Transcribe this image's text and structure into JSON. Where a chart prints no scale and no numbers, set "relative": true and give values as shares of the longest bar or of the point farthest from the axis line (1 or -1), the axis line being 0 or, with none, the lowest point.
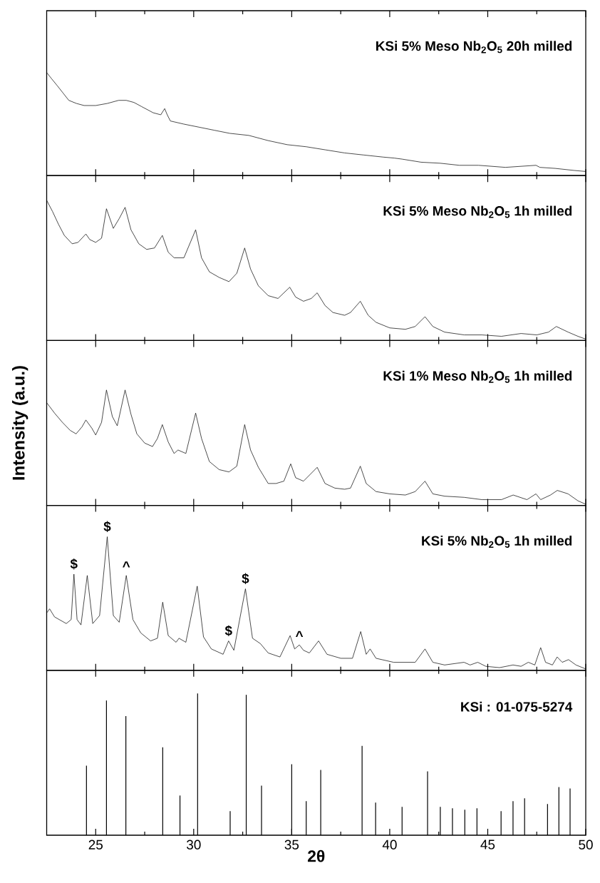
{
  "chart_data": [
    {
      "type": "line",
      "relative": true,
      "title": "KSi 5% Meso Nb$_{2}$O$_{5}$ 20h milled",
      "xlim": [
        22.5,
        50
      ],
      "xticks": [
        25,
        {
          "value": 27.5,
          "label": null
        },
        30,
        {
          "value": 32.5,
          "label": null
        },
        35,
        {
          "value": 37.5,
          "label": null
        },
        40,
        {
          "value": 42.5,
          "label": null
        },
        45,
        {
          "value": 47.5,
          "label": null
        },
        50
      ],
      "tick_labels": false,
      "series": [
        {
          "color": "#000000",
          "x": [
            22.5,
            22.75,
            23.05,
            23.34,
            23.63,
            24.02,
            24.41,
            25.0,
            25.59,
            26.17,
            26.56,
            26.95,
            27.34,
            27.93,
            28.32,
            28.52,
            28.65,
            28.81,
            29.49,
            30.27,
            31.05,
            31.84,
            32.81,
            33.79,
            34.77,
            35.74,
            36.72,
            37.7,
            38.67,
            39.65,
            40.23,
            40.63,
            41.6,
            42.58,
            43.55,
            44.53,
            45.9,
            47.46,
            47.66,
            48.44,
            49.41,
            50.0
          ],
          "values": [
            1.0,
            0.94,
            0.87,
            0.8,
            0.73,
            0.7,
            0.68,
            0.68,
            0.7,
            0.73,
            0.73,
            0.71,
            0.67,
            0.61,
            0.59,
            0.65,
            0.59,
            0.53,
            0.5,
            0.47,
            0.44,
            0.41,
            0.39,
            0.34,
            0.3,
            0.28,
            0.25,
            0.22,
            0.2,
            0.18,
            0.17,
            0.16,
            0.13,
            0.12,
            0.1,
            0.1,
            0.08,
            0.1,
            0.08,
            0.07,
            0.05,
            0.04
          ]
        }
      ]
    },
    {
      "type": "line",
      "relative": true,
      "title": "KSi 5% Meso Nb$_{2}$O$_{5}$ 1h milled",
      "xlim": [
        22.5,
        50
      ],
      "xticks": [
        25,
        {
          "value": 27.5,
          "label": null
        },
        30,
        {
          "value": 32.5,
          "label": null
        },
        35,
        {
          "value": 37.5,
          "label": null
        },
        40,
        {
          "value": 42.5,
          "label": null
        },
        45,
        {
          "value": 47.5,
          "label": null
        },
        50
      ],
      "tick_labels": false,
      "series": [
        {
          "color": "#000000",
          "x": [
            22.5,
            22.8,
            23.1,
            23.4,
            23.8,
            24.1,
            24.5,
            24.7,
            25.0,
            25.3,
            25.55,
            25.9,
            26.2,
            26.5,
            26.8,
            27.2,
            27.6,
            28.0,
            28.4,
            28.7,
            29.0,
            29.5,
            30.1,
            30.4,
            30.8,
            31.3,
            31.8,
            32.2,
            32.6,
            32.9,
            33.3,
            33.8,
            34.3,
            34.9,
            35.2,
            35.6,
            36.0,
            36.3,
            36.7,
            37.1,
            37.7,
            38.0,
            38.5,
            38.9,
            39.3,
            40.0,
            40.8,
            41.3,
            41.8,
            42.2,
            42.8,
            43.8,
            44.7,
            45.7,
            46.7,
            47.5,
            48.1,
            48.5,
            49.1,
            49.6,
            50.0
          ],
          "values": [
            1.0,
            0.92,
            0.83,
            0.75,
            0.69,
            0.7,
            0.76,
            0.72,
            0.7,
            0.73,
            0.94,
            0.8,
            0.87,
            0.95,
            0.79,
            0.69,
            0.65,
            0.66,
            0.75,
            0.63,
            0.59,
            0.59,
            0.79,
            0.59,
            0.49,
            0.45,
            0.42,
            0.48,
            0.66,
            0.51,
            0.39,
            0.32,
            0.3,
            0.38,
            0.31,
            0.28,
            0.3,
            0.34,
            0.25,
            0.2,
            0.18,
            0.2,
            0.28,
            0.18,
            0.13,
            0.09,
            0.08,
            0.1,
            0.17,
            0.1,
            0.06,
            0.04,
            0.04,
            0.03,
            0.05,
            0.04,
            0.06,
            0.1,
            0.06,
            0.03,
            0.01
          ]
        }
      ]
    },
    {
      "type": "line",
      "relative": true,
      "title": "KSi 1% Meso Nb$_{2}$O$_{5}$ 1h milled",
      "ylabel": "Intensity (a.u.)",
      "xlim": [
        22.5,
        50
      ],
      "xticks": [
        25,
        {
          "value": 27.5,
          "label": null
        },
        30,
        {
          "value": 32.5,
          "label": null
        },
        35,
        {
          "value": 37.5,
          "label": null
        },
        40,
        {
          "value": 42.5,
          "label": null
        },
        45,
        {
          "value": 47.5,
          "label": null
        },
        50
      ],
      "tick_labels": false,
      "series": [
        {
          "color": "#000000",
          "x": [
            22.5,
            22.9,
            23.3,
            23.7,
            24.0,
            24.3,
            24.5,
            24.8,
            25.0,
            25.3,
            25.55,
            25.85,
            26.1,
            26.5,
            26.8,
            27.1,
            27.5,
            27.9,
            28.15,
            28.4,
            28.7,
            29.0,
            29.2,
            29.6,
            30.1,
            30.4,
            30.8,
            31.3,
            31.8,
            32.2,
            32.6,
            32.9,
            33.3,
            33.8,
            34.2,
            34.6,
            34.95,
            35.2,
            35.6,
            36.3,
            36.7,
            37.2,
            37.7,
            38.0,
            38.5,
            38.8,
            39.3,
            40.0,
            40.8,
            41.3,
            41.8,
            42.2,
            42.8,
            43.8,
            44.7,
            45.7,
            46.3,
            47.0,
            47.46,
            47.7,
            48.2,
            48.55,
            49.1,
            49.6,
            50.0
          ],
          "values": [
            0.89,
            0.8,
            0.72,
            0.65,
            0.62,
            0.68,
            0.74,
            0.67,
            0.61,
            0.72,
            1.0,
            0.77,
            0.69,
            1.0,
            0.79,
            0.62,
            0.54,
            0.51,
            0.58,
            0.7,
            0.55,
            0.45,
            0.48,
            0.45,
            0.8,
            0.58,
            0.38,
            0.31,
            0.29,
            0.34,
            0.7,
            0.48,
            0.33,
            0.19,
            0.19,
            0.21,
            0.36,
            0.24,
            0.21,
            0.33,
            0.19,
            0.15,
            0.14,
            0.15,
            0.34,
            0.19,
            0.12,
            0.1,
            0.09,
            0.12,
            0.21,
            0.1,
            0.08,
            0.07,
            0.05,
            0.05,
            0.09,
            0.05,
            0.1,
            0.05,
            0.09,
            0.13,
            0.1,
            0.04,
            0.01
          ]
        }
      ]
    },
    {
      "type": "line",
      "relative": true,
      "title": "KSi 5% Nb$_{2}$O$_{5}$ 1h milled",
      "xlim": [
        22.5,
        50
      ],
      "xticks": [
        25,
        {
          "value": 27.5,
          "label": null
        },
        30,
        {
          "value": 32.5,
          "label": null
        },
        35,
        {
          "value": 37.5,
          "label": null
        },
        40,
        {
          "value": 42.5,
          "label": null
        },
        45,
        {
          "value": 47.5,
          "label": null
        },
        50
      ],
      "tick_labels": false,
      "annotations": [
        {
          "text": "$",
          "x": 23.89,
          "y": 0.72
        },
        {
          "text": "$",
          "x": 25.59,
          "y": 1.0
        },
        {
          "text": "^",
          "x": 26.56,
          "y": 0.71
        },
        {
          "text": "$",
          "x": 31.78,
          "y": 0.22
        },
        {
          "text": "$",
          "x": 32.64,
          "y": 0.61
        },
        {
          "text": "^",
          "x": 35.39,
          "y": 0.19
        }
      ],
      "series": [
        {
          "color": "#000000",
          "x": [
            22.5,
            22.65,
            22.9,
            23.5,
            23.75,
            23.89,
            24.05,
            24.25,
            24.57,
            24.85,
            25.2,
            25.59,
            25.9,
            26.2,
            26.56,
            26.9,
            27.3,
            27.8,
            28.15,
            28.42,
            28.7,
            29.1,
            29.25,
            29.6,
            30.18,
            30.5,
            30.9,
            31.5,
            31.78,
            32.05,
            32.64,
            33.0,
            33.4,
            33.8,
            34.4,
            34.92,
            35.15,
            35.39,
            35.6,
            35.9,
            36.37,
            36.8,
            37.5,
            38.1,
            38.52,
            38.8,
            39.0,
            39.3,
            40.2,
            41.3,
            41.8,
            42.2,
            42.8,
            43.79,
            44.1,
            44.49,
            44.9,
            45.6,
            46.29,
            46.7,
            47.07,
            47.4,
            47.7,
            47.95,
            48.3,
            48.54,
            48.8,
            49.12,
            49.5,
            50.0
          ],
          "values": [
            0.43,
            0.46,
            0.4,
            0.35,
            0.38,
            0.72,
            0.38,
            0.34,
            0.71,
            0.35,
            0.41,
            1.0,
            0.41,
            0.36,
            0.71,
            0.38,
            0.28,
            0.22,
            0.24,
            0.51,
            0.26,
            0.21,
            0.24,
            0.21,
            0.63,
            0.25,
            0.16,
            0.12,
            0.22,
            0.15,
            0.61,
            0.24,
            0.2,
            0.13,
            0.1,
            0.26,
            0.16,
            0.19,
            0.15,
            0.13,
            0.22,
            0.12,
            0.09,
            0.09,
            0.29,
            0.12,
            0.16,
            0.09,
            0.06,
            0.06,
            0.16,
            0.06,
            0.04,
            0.06,
            0.04,
            0.06,
            0.03,
            0.02,
            0.04,
            0.03,
            0.06,
            0.04,
            0.17,
            0.06,
            0.04,
            0.1,
            0.06,
            0.08,
            0.04,
            0.01
          ]
        }
      ]
    },
    {
      "type": "bar",
      "relative": true,
      "title": "KSi : 01-075-5274",
      "xlabel": "2θ",
      "xlim": [
        22.5,
        50
      ],
      "xticks": [
        25,
        {
          "value": 27.5,
          "label": null
        },
        30,
        {
          "value": 32.5,
          "label": null
        },
        35,
        {
          "value": 37.5,
          "label": null
        },
        40,
        {
          "value": 42.5,
          "label": null
        },
        45,
        {
          "value": 47.5,
          "label": null
        },
        50
      ],
      "tick_labels": "x",
      "series": [
        {
          "color": "#000000",
          "x": [
            24.53,
            25.55,
            26.54,
            28.42,
            29.3,
            30.2,
            31.86,
            32.68,
            33.46,
            35.0,
            35.74,
            36.48,
            38.59,
            39.28,
            40.63,
            41.93,
            42.58,
            43.2,
            43.83,
            44.45,
            45.68,
            46.29,
            46.88,
            48.05,
            48.63,
            49.2
          ],
          "values": [
            0.49,
            0.95,
            0.84,
            0.62,
            0.28,
            1.0,
            0.17,
            0.99,
            0.35,
            0.5,
            0.24,
            0.46,
            0.63,
            0.23,
            0.2,
            0.45,
            0.2,
            0.19,
            0.18,
            0.19,
            0.17,
            0.24,
            0.26,
            0.22,
            0.34,
            0.33
          ]
        }
      ]
    }
  ]
}
